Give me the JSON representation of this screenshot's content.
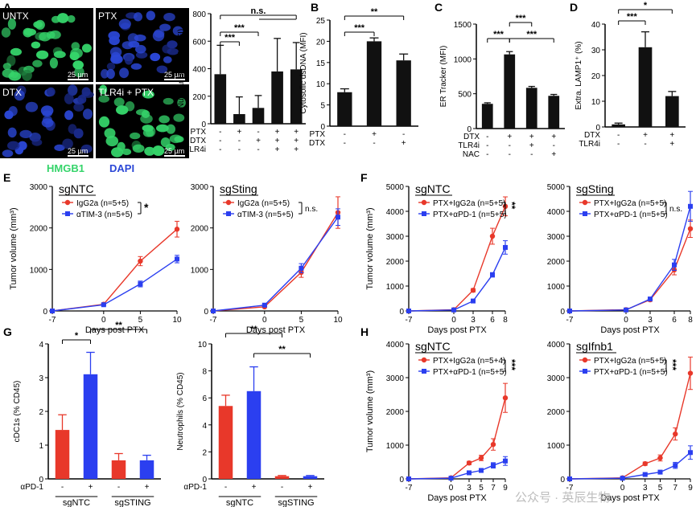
{
  "panels": {
    "A": {
      "letter": "A",
      "images": [
        {
          "label": "UNTX",
          "scale": "25 µm",
          "style": "green"
        },
        {
          "label": "PTX",
          "scale": "25 µm",
          "style": "blue"
        },
        {
          "label": "DTX",
          "scale": "25 µm",
          "style": "blue"
        },
        {
          "label": "TLR4i + PTX",
          "scale": "25 µm",
          "style": "green"
        }
      ],
      "stain_labels": [
        "HMGB1",
        "DAPI"
      ],
      "colors": {
        "hmgb1": "#35d46a",
        "dapi": "#2b47d6"
      }
    },
    "B": {
      "letter": "B"
    },
    "C": {
      "letter": "C"
    },
    "D": {
      "letter": "D"
    },
    "E": {
      "letter": "E"
    },
    "F": {
      "letter": "F"
    },
    "G": {
      "letter": "G"
    },
    "H": {
      "letter": "H"
    }
  },
  "colors": {
    "red": "#e8382a",
    "blue": "#2b3ff0",
    "black": "#111111"
  },
  "chart_data": [
    {
      "id": "A_bar",
      "type": "bar",
      "ylabel": "Nuclear HMGB1 (MFI)",
      "ylim": [
        0,
        800
      ],
      "yticks": [
        "0",
        "200",
        "400",
        "600",
        "800"
      ],
      "values": [
        360,
        70,
        115,
        380,
        395
      ],
      "errors": [
        210,
        125,
        90,
        240,
        195
      ],
      "treat_rows": [
        {
          "name": "PTX",
          "marks": [
            "-",
            "+",
            "-",
            "+",
            "+"
          ]
        },
        {
          "name": "DTX",
          "marks": [
            "-",
            "-",
            "+",
            "+",
            "+"
          ]
        },
        {
          "name": "TLR4i",
          "marks": [
            "-",
            "-",
            "-",
            "+",
            "+"
          ]
        }
      ],
      "sig": [
        "***",
        "***",
        "n.s."
      ]
    },
    {
      "id": "B_bar",
      "type": "bar",
      "ylabel": "Cytosolic dsDNA (MFI)",
      "ylim": [
        0,
        25
      ],
      "yticks": [
        "0",
        "5",
        "10",
        "15",
        "20",
        "25"
      ],
      "values": [
        8,
        20,
        15.5
      ],
      "errors": [
        0.8,
        0.8,
        1.5
      ],
      "treat_rows": [
        {
          "name": "PTX",
          "marks": [
            "-",
            "+",
            "-"
          ]
        },
        {
          "name": "DTX",
          "marks": [
            "-",
            "-",
            "+"
          ]
        }
      ],
      "sig": [
        "***",
        "**"
      ]
    },
    {
      "id": "C_bar",
      "type": "bar",
      "ylabel": "ER Tracker (MFI)",
      "ylim": [
        0,
        1500
      ],
      "yticks": [
        "0",
        "500",
        "1000",
        "1500"
      ],
      "values": [
        355,
        1065,
        585,
        470
      ],
      "errors": [
        15,
        40,
        20,
        20
      ],
      "treat_rows": [
        {
          "name": "DTX",
          "marks": [
            "-",
            "+",
            "+",
            "+"
          ]
        },
        {
          "name": "TLR4i",
          "marks": [
            "-",
            "-",
            "+",
            "-"
          ]
        },
        {
          "name": "NAC",
          "marks": [
            "-",
            "-",
            "-",
            "+"
          ]
        }
      ],
      "sig": [
        "***",
        "***",
        "***"
      ]
    },
    {
      "id": "D_bar",
      "type": "bar",
      "ylabel": "Extra. LAMP1⁺ (%)",
      "ylim": [
        0,
        40
      ],
      "yticks": [
        "0",
        "10",
        "20",
        "30",
        "40"
      ],
      "values": [
        1,
        31,
        12
      ],
      "errors": [
        0.5,
        6,
        1.8
      ],
      "treat_rows": [
        {
          "name": "DTX",
          "marks": [
            "-",
            "+",
            "+"
          ]
        },
        {
          "name": "TLR4i",
          "marks": [
            "-",
            "-",
            "+"
          ]
        }
      ],
      "sig": [
        "***",
        "*"
      ]
    },
    {
      "id": "E_left",
      "type": "line",
      "title": "sgNTC",
      "xlabel": "Days post PTX",
      "ylabel": "Tumor volume (mm³)",
      "x": [
        -7,
        0,
        5,
        10
      ],
      "xticks": [
        "-7",
        "0",
        "5",
        "10"
      ],
      "ylim": [
        0,
        3000
      ],
      "yticks": [
        "0",
        "1000",
        "2000",
        "3000"
      ],
      "series": [
        {
          "name": "IgG2a (n=5+5)",
          "color": "red",
          "values": [
            0,
            160,
            1200,
            1970
          ],
          "err": [
            0,
            20,
            110,
            190
          ]
        },
        {
          "name": "αTIM-3 (n=5+5)",
          "color": "blue",
          "values": [
            0,
            150,
            650,
            1250
          ],
          "err": [
            0,
            20,
            70,
            90
          ]
        }
      ],
      "sig": "*"
    },
    {
      "id": "E_right",
      "type": "line",
      "title": "sgSting",
      "xlabel": "Days post PTX",
      "x": [
        -7,
        0,
        5,
        10
      ],
      "xticks": [
        "-7",
        "0",
        "5",
        "10"
      ],
      "ylim": [
        0,
        3000
      ],
      "yticks": [
        "0",
        "1000",
        "2000",
        "3000"
      ],
      "series": [
        {
          "name": "IgG2a (n=5+5)",
          "color": "red",
          "values": [
            0,
            100,
            930,
            2370
          ],
          "err": [
            0,
            15,
            120,
            380
          ]
        },
        {
          "name": "αTIM-3 (n=5+5)",
          "color": "blue",
          "values": [
            0,
            140,
            1030,
            2260
          ],
          "err": [
            0,
            20,
            110,
            200
          ]
        }
      ],
      "sig": "n.s."
    },
    {
      "id": "F_left",
      "type": "line",
      "title": "sgNTC",
      "xlabel": "Days post PTX",
      "ylabel": "Tumor volume (mm³)",
      "x": [
        -7,
        0,
        3,
        6,
        8
      ],
      "xticks": [
        "-7",
        "0",
        "3",
        "6",
        "8"
      ],
      "ylim": [
        0,
        5000
      ],
      "yticks": [
        "0",
        "1000",
        "2000",
        "3000",
        "4000",
        "5000"
      ],
      "series": [
        {
          "name": "PTX+IgG2a (n=5+5)",
          "color": "red",
          "values": [
            0,
            50,
            830,
            3000,
            4200
          ],
          "err": [
            0,
            20,
            70,
            320,
            380
          ]
        },
        {
          "name": "PTX+αPD-1 (n=5+5)",
          "color": "blue",
          "values": [
            0,
            40,
            400,
            1450,
            2550
          ],
          "err": [
            0,
            10,
            40,
            90,
            270
          ]
        }
      ],
      "sig": "**"
    },
    {
      "id": "F_right",
      "type": "line",
      "title": "sgSting",
      "xlabel": "Days post PTX",
      "x": [
        -7,
        0,
        3,
        6,
        8
      ],
      "xticks": [
        "-7",
        "0",
        "3",
        "6",
        "8"
      ],
      "ylim": [
        0,
        5000
      ],
      "yticks": [
        "0",
        "1000",
        "2000",
        "3000",
        "4000",
        "5000"
      ],
      "series": [
        {
          "name": "PTX+IgG2a (n=5+5)",
          "color": "red",
          "values": [
            0,
            50,
            450,
            1650,
            3300
          ],
          "err": [
            0,
            10,
            60,
            200,
            350
          ]
        },
        {
          "name": "PTX+αPD-1 (n=5+5)",
          "color": "blue",
          "values": [
            0,
            40,
            480,
            1850,
            4200
          ],
          "err": [
            0,
            10,
            70,
            220,
            600
          ]
        }
      ],
      "sig": "n.s."
    },
    {
      "id": "G_left",
      "type": "bar",
      "ylabel": "cDC1s (% CD45)",
      "ylim": [
        0,
        4
      ],
      "yticks": [
        "0",
        "1",
        "2",
        "3",
        "4"
      ],
      "values": [
        1.45,
        3.1,
        0.55,
        0.55
      ],
      "errors": [
        0.45,
        0.65,
        0.2,
        0.15
      ],
      "bar_colors": [
        "red",
        "blue",
        "red",
        "blue"
      ],
      "treat_rows": [
        {
          "name": "αPD-1",
          "marks": [
            "-",
            "+",
            "-",
            "+"
          ]
        }
      ],
      "groups": [
        "sgNTC",
        "sgSTING"
      ],
      "sig": [
        "*",
        "**"
      ]
    },
    {
      "id": "G_right",
      "type": "bar",
      "ylabel": "Neutrophils (% CD45)",
      "ylim": [
        0,
        10
      ],
      "yticks": [
        "0",
        "2",
        "4",
        "6",
        "8",
        "10"
      ],
      "values": [
        5.4,
        6.5,
        0.2,
        0.2
      ],
      "errors": [
        0.8,
        1.8,
        0.05,
        0.05
      ],
      "bar_colors": [
        "red",
        "blue",
        "red",
        "blue"
      ],
      "treat_rows": [
        {
          "name": "αPD-1",
          "marks": [
            "-",
            "+",
            "-",
            "+"
          ]
        }
      ],
      "groups": [
        "sgNTC",
        "sgSTING"
      ],
      "sig": [
        "**",
        "**"
      ]
    },
    {
      "id": "H_left",
      "type": "line",
      "title": "sgNTC",
      "xlabel": "Days post PTX",
      "ylabel": "Tumor volume (mm³)",
      "x": [
        -7,
        0,
        3,
        5,
        7,
        9
      ],
      "xticks": [
        "-7",
        "0",
        "3",
        "5",
        "7",
        "9"
      ],
      "ylim": [
        0,
        4000
      ],
      "yticks": [
        "0",
        "1000",
        "2000",
        "3000",
        "4000"
      ],
      "series": [
        {
          "name": "PTX+IgG2a (n=5+4)",
          "color": "red",
          "values": [
            0,
            30,
            470,
            620,
            1020,
            2400
          ],
          "err": [
            0,
            10,
            50,
            80,
            170,
            430
          ]
        },
        {
          "name": "PTX+αPD-1 (n=5+5)",
          "color": "blue",
          "values": [
            0,
            20,
            180,
            250,
            400,
            530
          ],
          "err": [
            0,
            10,
            40,
            60,
            80,
            130
          ]
        }
      ],
      "sig": "***"
    },
    {
      "id": "H_right",
      "type": "line",
      "title": "sgIfnb1",
      "xlabel": "Days post PTX",
      "x": [
        -7,
        0,
        3,
        5,
        7,
        9
      ],
      "xticks": [
        "-7",
        "0",
        "3",
        "5",
        "7",
        "9"
      ],
      "ylim": [
        0,
        4000
      ],
      "yticks": [
        "0",
        "1000",
        "2000",
        "3000",
        "4000"
      ],
      "series": [
        {
          "name": "PTX+IgG2a (n=5+5)",
          "color": "red",
          "values": [
            0,
            30,
            450,
            620,
            1330,
            3130
          ],
          "err": [
            0,
            10,
            50,
            90,
            180,
            480
          ]
        },
        {
          "name": "PTX+αPD-1 (n=5+5)",
          "color": "blue",
          "values": [
            0,
            20,
            130,
            200,
            400,
            780
          ],
          "err": [
            0,
            10,
            30,
            40,
            90,
            200
          ]
        }
      ],
      "sig": "***"
    }
  ],
  "watermark": "公众号 · 英辰生物"
}
